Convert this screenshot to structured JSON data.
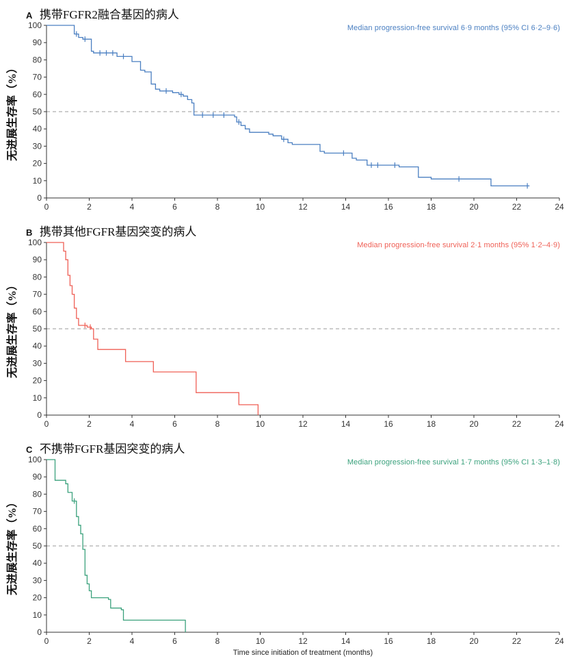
{
  "figure": {
    "xlabel": "Time since initiation of treatment (months)",
    "ylabel": "无进展生存率（%）"
  },
  "chart_data": [
    {
      "type": "line",
      "subtype": "kaplan-meier-step",
      "panel": "A",
      "title": "携带FGFR2融合基因的病人",
      "annotation": "Median progression-free survival 6·9 months (95% CI 6·2–9·6)",
      "color": "#4a7fc1",
      "xlim": [
        0,
        24
      ],
      "ylim": [
        0,
        100
      ],
      "x_ticks": [
        0,
        2,
        4,
        6,
        8,
        10,
        12,
        14,
        16,
        18,
        20,
        22,
        24
      ],
      "y_ticks": [
        0,
        10,
        20,
        30,
        40,
        50,
        60,
        70,
        80,
        90,
        100
      ],
      "median_reference_y": 50,
      "grid": false,
      "start": [
        0,
        100
      ],
      "steps": [
        [
          1.3,
          95
        ],
        [
          1.5,
          93
        ],
        [
          1.7,
          92
        ],
        [
          2.1,
          85
        ],
        [
          2.2,
          84
        ],
        [
          3.3,
          82
        ],
        [
          4.0,
          79
        ],
        [
          4.4,
          74
        ],
        [
          4.6,
          73
        ],
        [
          4.9,
          66
        ],
        [
          5.1,
          63
        ],
        [
          5.3,
          62
        ],
        [
          5.9,
          61
        ],
        [
          6.2,
          60
        ],
        [
          6.4,
          59
        ],
        [
          6.6,
          57
        ],
        [
          6.8,
          55
        ],
        [
          6.9,
          48
        ],
        [
          8.8,
          47
        ],
        [
          8.9,
          44
        ],
        [
          9.1,
          42
        ],
        [
          9.3,
          40
        ],
        [
          9.5,
          38
        ],
        [
          10.4,
          37
        ],
        [
          10.6,
          36
        ],
        [
          11.0,
          34
        ],
        [
          11.3,
          32
        ],
        [
          11.5,
          31
        ],
        [
          12.8,
          27
        ],
        [
          13.0,
          26
        ],
        [
          14.3,
          23
        ],
        [
          14.5,
          22
        ],
        [
          15.0,
          19
        ],
        [
          16.5,
          18
        ],
        [
          17.4,
          12
        ],
        [
          18.0,
          11
        ],
        [
          20.8,
          7
        ]
      ],
      "end_x": 22.6,
      "censor_marks": [
        [
          1.4,
          95
        ],
        [
          1.8,
          92
        ],
        [
          2.5,
          84
        ],
        [
          2.8,
          84
        ],
        [
          3.1,
          84
        ],
        [
          3.6,
          82
        ],
        [
          5.6,
          62
        ],
        [
          6.3,
          60
        ],
        [
          7.3,
          48
        ],
        [
          7.8,
          48
        ],
        [
          8.3,
          48
        ],
        [
          9.0,
          44
        ],
        [
          11.1,
          34
        ],
        [
          13.9,
          26
        ],
        [
          15.2,
          19
        ],
        [
          15.5,
          19
        ],
        [
          16.3,
          19
        ],
        [
          19.3,
          11
        ],
        [
          22.5,
          7
        ]
      ]
    },
    {
      "type": "line",
      "subtype": "kaplan-meier-step",
      "panel": "B",
      "title": "携带其他FGFR基因突变的病人",
      "annotation": "Median progression-free survival 2·1 months (95% 1·2–4·9)",
      "color": "#ef5f55",
      "xlim": [
        0,
        24
      ],
      "ylim": [
        0,
        100
      ],
      "x_ticks": [
        0,
        2,
        4,
        6,
        8,
        10,
        12,
        14,
        16,
        18,
        20,
        22,
        24
      ],
      "y_ticks": [
        0,
        10,
        20,
        30,
        40,
        50,
        60,
        70,
        80,
        90,
        100
      ],
      "median_reference_y": 50,
      "grid": false,
      "start": [
        0,
        100
      ],
      "steps": [
        [
          0.8,
          95
        ],
        [
          0.9,
          90
        ],
        [
          1.0,
          81
        ],
        [
          1.1,
          75
        ],
        [
          1.2,
          70
        ],
        [
          1.3,
          62
        ],
        [
          1.4,
          56
        ],
        [
          1.5,
          52
        ],
        [
          1.9,
          51
        ],
        [
          2.1,
          50
        ],
        [
          2.2,
          44
        ],
        [
          2.4,
          38
        ],
        [
          3.7,
          31
        ],
        [
          5.0,
          25
        ],
        [
          7.0,
          13
        ],
        [
          9.0,
          6
        ],
        [
          9.9,
          0
        ]
      ],
      "end_x": 9.9,
      "censor_marks": [
        [
          1.8,
          52
        ],
        [
          2.05,
          51
        ]
      ]
    },
    {
      "type": "line",
      "subtype": "kaplan-meier-step",
      "panel": "C",
      "title": "不携带FGFR基因突变的病人",
      "annotation": "Median progression-free survival 1·7 months (95% CI 1·3–1·8)",
      "color": "#3aa17c",
      "xlim": [
        0,
        24
      ],
      "ylim": [
        0,
        100
      ],
      "x_ticks": [
        0,
        2,
        4,
        6,
        8,
        10,
        12,
        14,
        16,
        18,
        20,
        22,
        24
      ],
      "y_ticks": [
        0,
        10,
        20,
        30,
        40,
        50,
        60,
        70,
        80,
        90,
        100
      ],
      "median_reference_y": 50,
      "grid": false,
      "start": [
        0,
        100
      ],
      "steps": [
        [
          0.4,
          88
        ],
        [
          0.9,
          86
        ],
        [
          1.0,
          81
        ],
        [
          1.2,
          76
        ],
        [
          1.4,
          67
        ],
        [
          1.5,
          62
        ],
        [
          1.6,
          57
        ],
        [
          1.7,
          48
        ],
        [
          1.8,
          33
        ],
        [
          1.9,
          28
        ],
        [
          2.0,
          24
        ],
        [
          2.1,
          20
        ],
        [
          2.9,
          19
        ],
        [
          3.0,
          14
        ],
        [
          3.5,
          13
        ],
        [
          3.6,
          7
        ],
        [
          6.5,
          0
        ]
      ],
      "end_x": 6.5,
      "censor_marks": [
        [
          1.3,
          76
        ]
      ]
    }
  ]
}
